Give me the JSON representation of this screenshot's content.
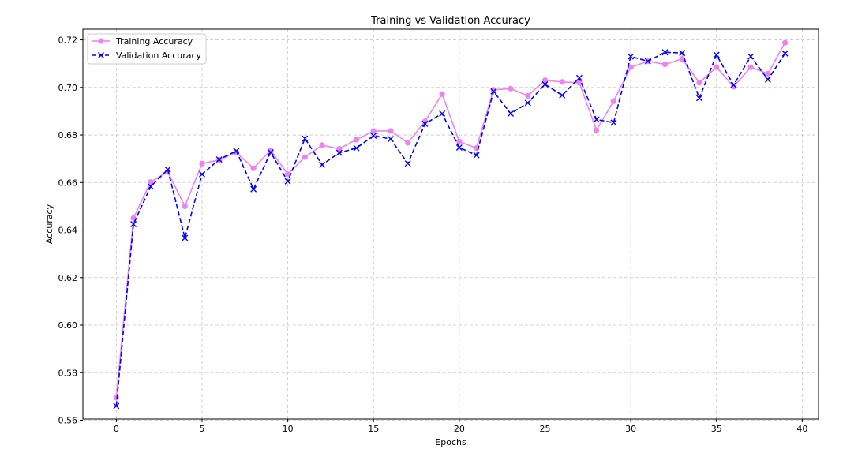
{
  "chart_data": {
    "type": "line",
    "title": "Training vs Validation Accuracy",
    "xlabel": "Epochs",
    "ylabel": "Accuracy",
    "xlim": [
      -1.95,
      40.95
    ],
    "ylim": [
      0.5605,
      0.7245
    ],
    "xticks": [
      0,
      5,
      10,
      15,
      20,
      25,
      30,
      35,
      40
    ],
    "yticks": [
      0.56,
      0.58,
      0.6,
      0.62,
      0.64,
      0.66,
      0.68,
      0.7,
      0.72
    ],
    "xtick_labels": [
      "0",
      "5",
      "10",
      "15",
      "20",
      "25",
      "30",
      "35",
      "40"
    ],
    "ytick_labels": [
      "0.56",
      "0.58",
      "0.60",
      "0.62",
      "0.64",
      "0.66",
      "0.68",
      "0.70",
      "0.72"
    ],
    "grid": true,
    "legend_position": "top-left",
    "x": [
      0,
      1,
      2,
      3,
      4,
      5,
      6,
      7,
      8,
      9,
      10,
      11,
      12,
      13,
      14,
      15,
      16,
      17,
      18,
      19,
      20,
      21,
      22,
      23,
      24,
      25,
      26,
      27,
      28,
      29,
      30,
      31,
      32,
      33,
      34,
      35,
      36,
      37,
      38,
      39
    ],
    "series": [
      {
        "name": "Training Accuracy",
        "color": "#ee82ee",
        "marker": "circle",
        "line_style": "solid",
        "values": [
          0.5695,
          0.645,
          0.6602,
          0.6645,
          0.65,
          0.668,
          0.6695,
          0.6727,
          0.666,
          0.6735,
          0.6635,
          0.6707,
          0.6757,
          0.6742,
          0.678,
          0.6817,
          0.6817,
          0.6767,
          0.6857,
          0.6972,
          0.6772,
          0.6745,
          0.699,
          0.6995,
          0.6965,
          0.703,
          0.7023,
          0.702,
          0.682,
          0.6942,
          0.7085,
          0.711,
          0.7097,
          0.712,
          0.702,
          0.7085,
          0.7003,
          0.7085,
          0.7058,
          0.7188
        ]
      },
      {
        "name": "Validation Accuracy",
        "color": "#0000ff",
        "marker": "x",
        "line_style": "dashed",
        "values": [
          0.566,
          0.6425,
          0.6583,
          0.6655,
          0.6367,
          0.6635,
          0.6697,
          0.6733,
          0.6572,
          0.6727,
          0.6605,
          0.6785,
          0.6675,
          0.6725,
          0.6745,
          0.6797,
          0.6783,
          0.668,
          0.6847,
          0.689,
          0.6747,
          0.6715,
          0.6983,
          0.689,
          0.6935,
          0.7013,
          0.6967,
          0.704,
          0.6865,
          0.6852,
          0.713,
          0.711,
          0.7148,
          0.7145,
          0.6955,
          0.7137,
          0.701,
          0.713,
          0.7033,
          0.7143
        ]
      }
    ]
  }
}
